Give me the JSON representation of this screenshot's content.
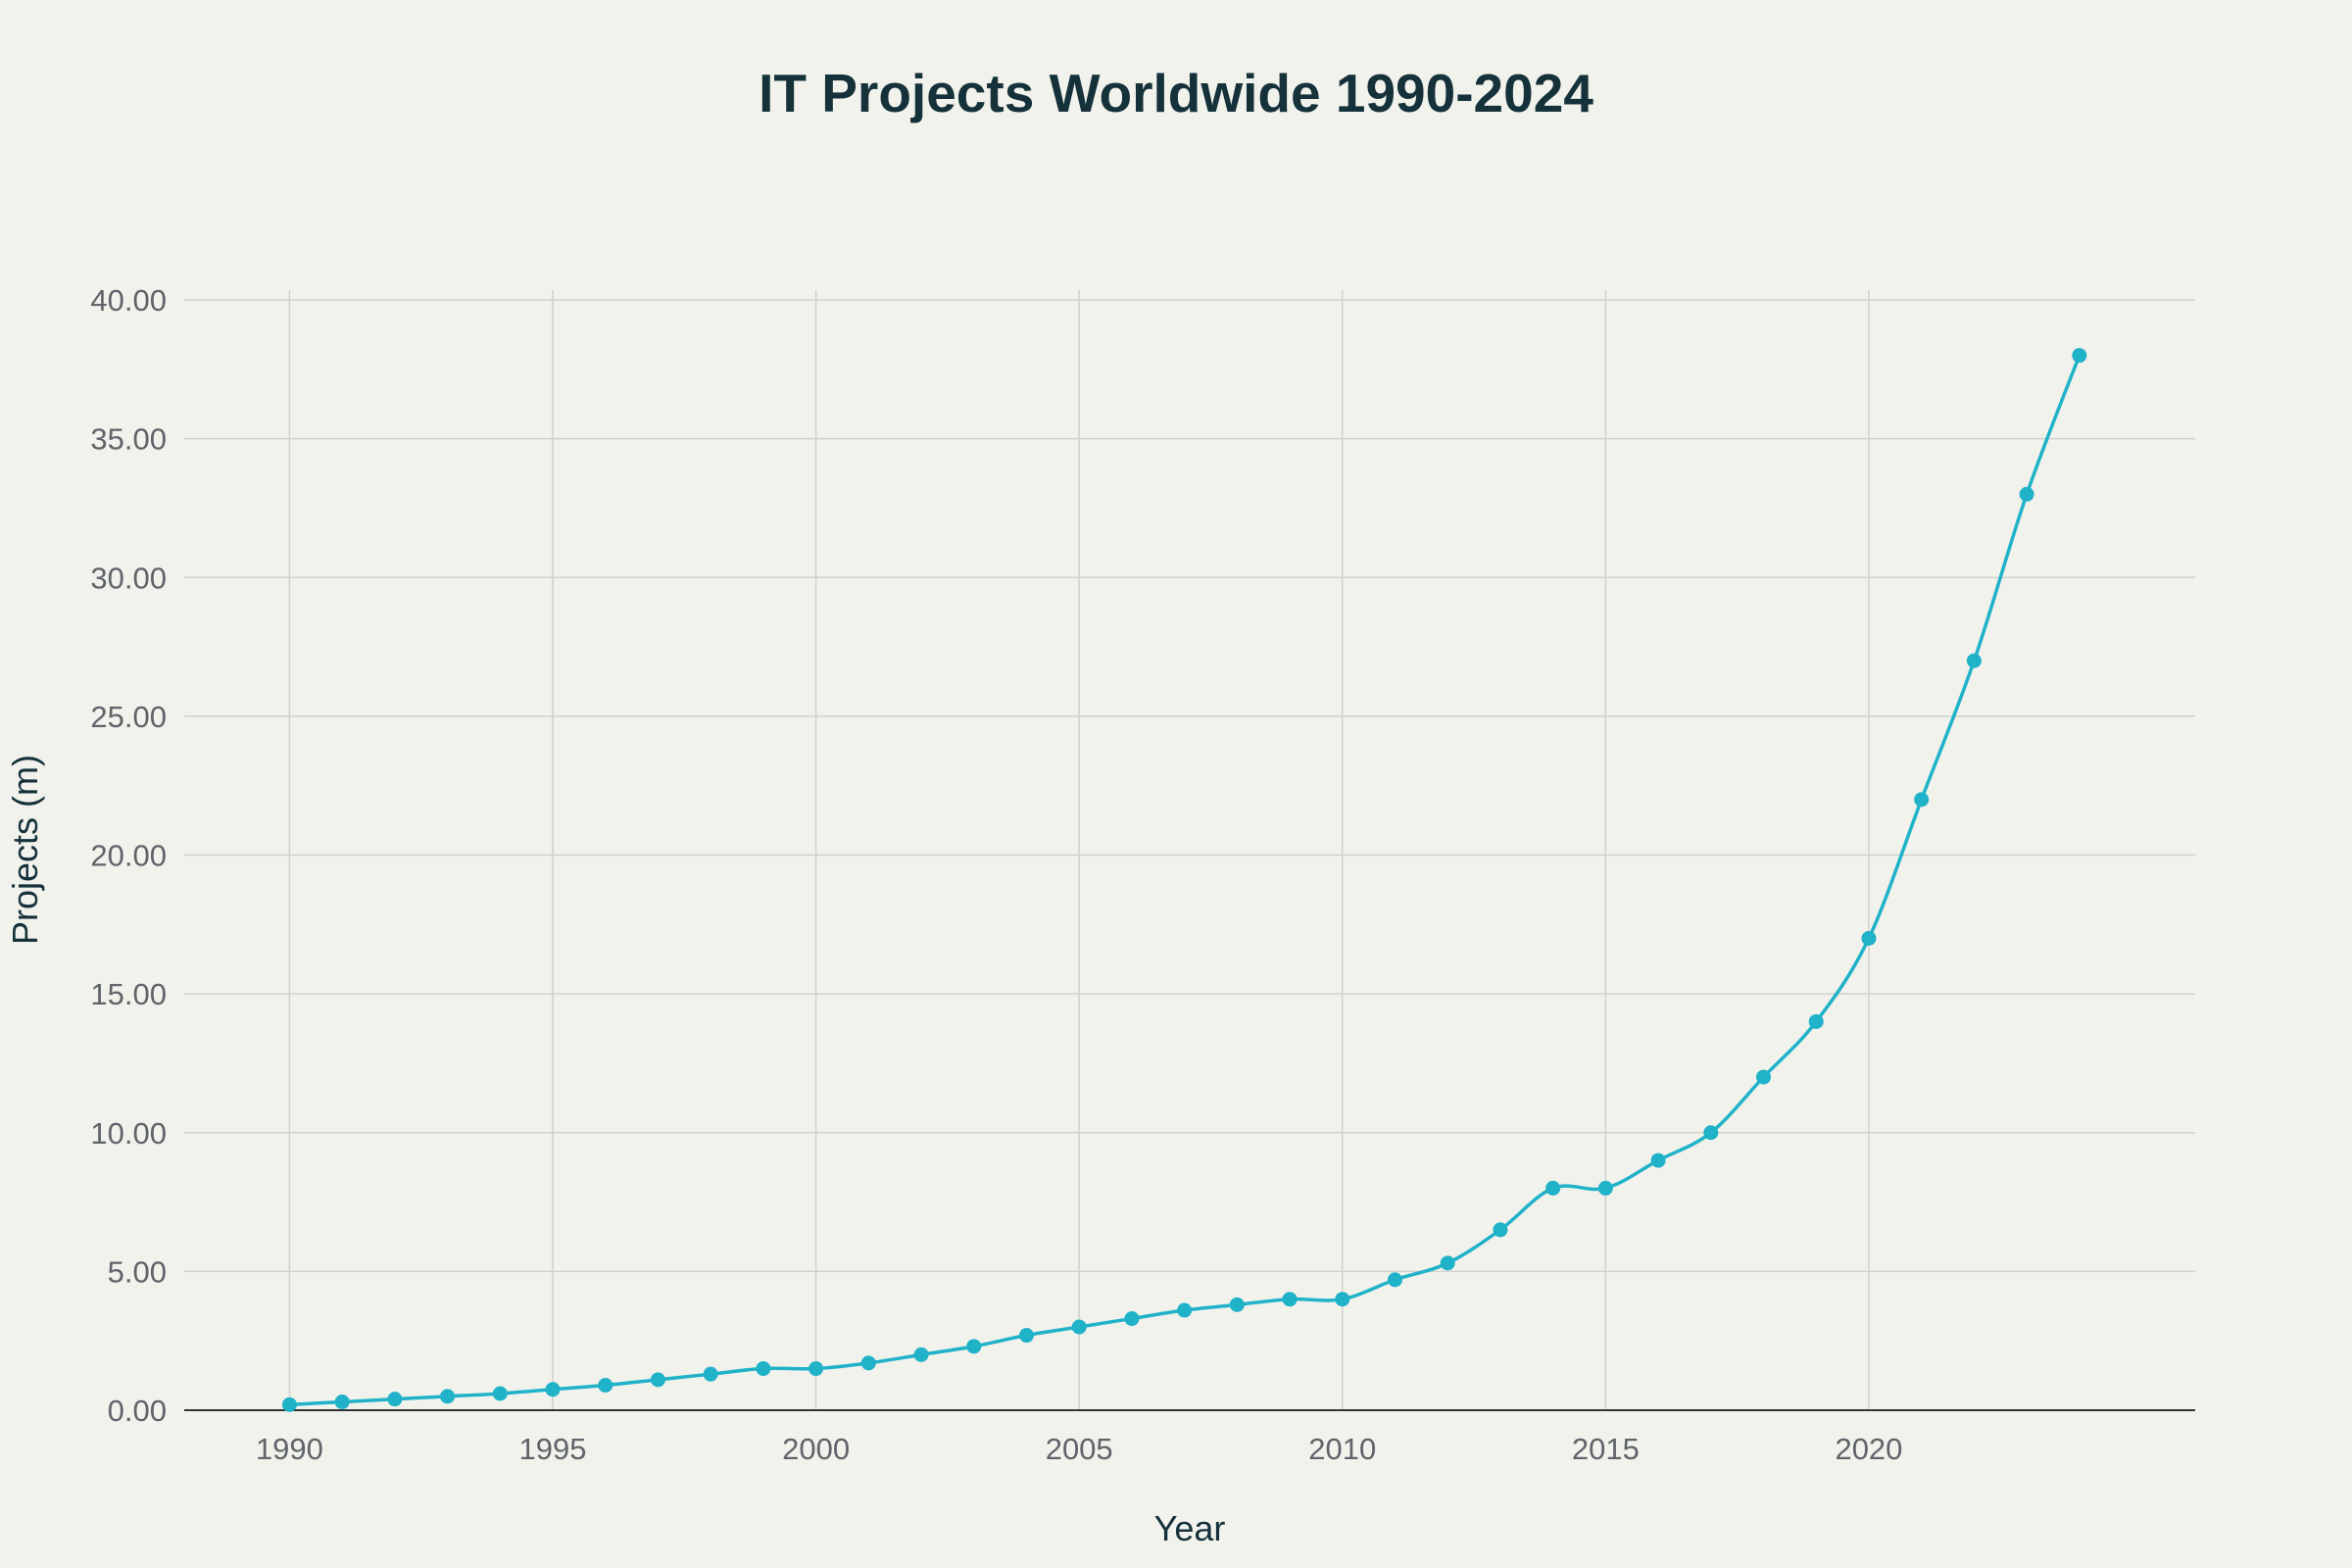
{
  "chart_data": {
    "type": "line",
    "title": "IT Projects Worldwide 1990-2024",
    "xlabel": "Year",
    "ylabel": "Projects (m)",
    "x": [
      1990,
      1991,
      1992,
      1993,
      1994,
      1995,
      1996,
      1997,
      1998,
      1999,
      2000,
      2001,
      2002,
      2003,
      2004,
      2005,
      2006,
      2007,
      2008,
      2009,
      2010,
      2011,
      2012,
      2013,
      2014,
      2015,
      2016,
      2017,
      2018,
      2019,
      2020,
      2021,
      2022,
      2023,
      2024
    ],
    "series": [
      {
        "name": "",
        "color": "#1fb2c8",
        "values": [
          0.2,
          0.3,
          0.4,
          0.5,
          0.6,
          0.75,
          0.9,
          1.1,
          1.3,
          1.5,
          1.5,
          1.7,
          2.0,
          2.3,
          2.7,
          3.0,
          3.3,
          3.6,
          3.8,
          4.0,
          4.0,
          4.7,
          5.3,
          6.5,
          8.0,
          8.0,
          9.0,
          10.0,
          12.0,
          14.0,
          17.0,
          22.0,
          27.0,
          33.0,
          38.0
        ]
      }
    ],
    "xlim": [
      1988,
      2026.2
    ],
    "ylim": [
      0,
      40
    ],
    "x_ticks": [
      "1990",
      "1995",
      "2000",
      "2005",
      "2010",
      "2015",
      "2020"
    ],
    "y_ticks": [
      "0.00",
      "5.00",
      "10.00",
      "15.00",
      "20.00",
      "25.00",
      "30.00",
      "35.00",
      "40.00"
    ],
    "grid": true,
    "legend": "none",
    "colors": {
      "background": "#f2f2ed",
      "grid": "#cfd1cc",
      "axis": "#2f3336",
      "title": "#15313a",
      "tick_text": "#5f6468"
    }
  }
}
